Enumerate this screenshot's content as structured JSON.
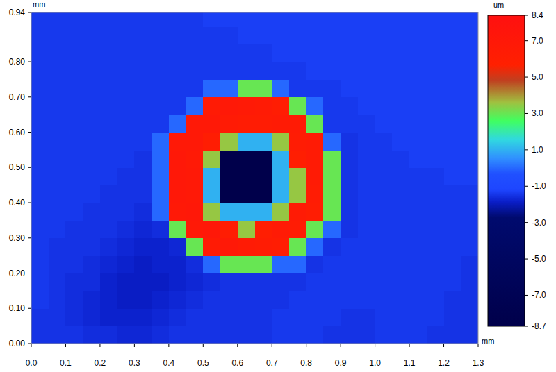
{
  "chart_data": {
    "type": "heatmap",
    "x_label": "mm",
    "y_label": "mm",
    "x": [
      0.025,
      0.075,
      0.125,
      0.175,
      0.225,
      0.275,
      0.325,
      0.375,
      0.425,
      0.475,
      0.525,
      0.575,
      0.625,
      0.675,
      0.725,
      0.775,
      0.825,
      0.875,
      0.925,
      0.975,
      1.025,
      1.075,
      1.125,
      1.175,
      1.225,
      1.275
    ],
    "y": [
      0.025,
      0.075,
      0.125,
      0.175,
      0.225,
      0.275,
      0.325,
      0.375,
      0.425,
      0.475,
      0.525,
      0.575,
      0.625,
      0.675,
      0.725,
      0.775,
      0.825,
      0.875,
      0.925
    ],
    "values": [
      [
        -1.5,
        -1.5,
        -1.5,
        -1.6,
        -1.6,
        -1.7,
        -1.7,
        -1.6,
        -1.5,
        -1.5,
        -1.5,
        -1.5,
        -1.5,
        -1.5,
        -1.4,
        -1.4,
        -1.4,
        -1.5,
        -1.5,
        -1.5,
        -1.4,
        -1.4,
        -1.4,
        -1.5,
        -1.5,
        -1.5
      ],
      [
        -1.5,
        -1.5,
        -1.6,
        -1.7,
        -1.8,
        -1.8,
        -1.8,
        -1.7,
        -1.6,
        -1.5,
        -1.5,
        -1.5,
        -1.5,
        -1.5,
        -1.4,
        -1.4,
        -1.4,
        -1.4,
        -1.5,
        -1.5,
        -1.4,
        -1.4,
        -1.4,
        -1.4,
        -1.5,
        -1.5
      ],
      [
        -1.4,
        -1.5,
        -1.6,
        -1.7,
        -1.8,
        -1.9,
        -1.9,
        -1.8,
        -1.7,
        -1.6,
        -1.5,
        -1.5,
        -1.5,
        -1.5,
        -1.5,
        -1.4,
        -1.4,
        -1.4,
        -1.4,
        -1.4,
        -1.4,
        -1.4,
        -1.4,
        -1.4,
        -1.5,
        -1.5
      ],
      [
        -1.4,
        -1.5,
        -1.6,
        -1.6,
        -1.8,
        -1.9,
        -1.9,
        -1.9,
        -1.8,
        -1.7,
        -1.6,
        -1.5,
        -1.5,
        -1.5,
        -1.5,
        -1.5,
        -1.4,
        -1.4,
        -1.4,
        -1.4,
        -1.4,
        -1.4,
        -1.4,
        -1.4,
        -1.4,
        -1.5
      ],
      [
        -1.4,
        -1.5,
        -1.5,
        -1.6,
        -1.7,
        -1.8,
        -1.9,
        -1.8,
        -1.8,
        -1.6,
        0.0,
        3.0,
        3.0,
        3.0,
        0.0,
        0.0,
        -1.5,
        -1.4,
        -1.4,
        -1.4,
        -1.4,
        -1.4,
        -1.4,
        -1.4,
        -1.4,
        -1.5
      ],
      [
        -1.4,
        -1.5,
        -1.5,
        -1.5,
        -1.6,
        -1.7,
        -1.8,
        -1.8,
        -1.7,
        3.0,
        6.5,
        6.8,
        6.6,
        6.4,
        6.2,
        3.0,
        0.0,
        -1.5,
        -1.4,
        -1.4,
        -1.4,
        -1.4,
        -1.4,
        -1.4,
        -1.4,
        -1.4
      ],
      [
        -1.4,
        -1.4,
        -1.5,
        -1.5,
        -1.5,
        -1.6,
        -1.7,
        -1.6,
        3.0,
        6.8,
        7.0,
        6.2,
        3.5,
        6.0,
        6.5,
        6.4,
        3.0,
        0.0,
        -1.5,
        -1.4,
        -1.4,
        -1.4,
        -1.4,
        -1.4,
        -1.4,
        -1.4
      ],
      [
        -1.4,
        -1.4,
        -1.4,
        -1.5,
        -1.5,
        -1.5,
        -1.6,
        0.0,
        6.8,
        7.0,
        3.5,
        1.0,
        1.0,
        1.0,
        3.5,
        6.6,
        6.2,
        3.0,
        -1.5,
        -1.4,
        -1.4,
        -1.4,
        -1.4,
        -1.4,
        -1.4,
        -1.4
      ],
      [
        -1.4,
        -1.4,
        -1.4,
        -1.4,
        -1.5,
        -1.5,
        -1.5,
        0.0,
        7.0,
        6.9,
        1.0,
        -8.5,
        -8.6,
        -8.5,
        1.0,
        3.5,
        6.4,
        3.0,
        -1.5,
        -1.4,
        -1.4,
        -1.4,
        -1.4,
        -1.4,
        -1.4,
        -1.4
      ],
      [
        -1.4,
        -1.4,
        -1.4,
        -1.4,
        -1.4,
        -1.5,
        -1.5,
        0.0,
        7.1,
        6.8,
        1.0,
        -8.5,
        -8.6,
        -8.5,
        1.0,
        3.5,
        6.5,
        3.0,
        -1.5,
        -1.4,
        -1.4,
        -1.4,
        -1.4,
        -1.4,
        -1.3,
        -1.3
      ],
      [
        -1.4,
        -1.4,
        -1.4,
        -1.4,
        -1.4,
        -1.4,
        -1.5,
        0.0,
        7.0,
        6.7,
        3.5,
        -8.5,
        -8.6,
        -8.5,
        1.0,
        6.0,
        6.6,
        3.0,
        -1.5,
        -1.4,
        -1.4,
        -1.4,
        -1.3,
        -1.3,
        -1.3,
        -1.3
      ],
      [
        -1.4,
        -1.4,
        -1.4,
        -1.4,
        -1.4,
        -1.4,
        -1.4,
        0.0,
        6.9,
        6.8,
        6.2,
        3.5,
        1.0,
        1.0,
        3.5,
        6.4,
        6.6,
        0.0,
        -1.5,
        -1.4,
        -1.4,
        -1.3,
        -1.3,
        -1.3,
        -1.3,
        -1.3
      ],
      [
        -1.4,
        -1.4,
        -1.4,
        -1.4,
        -1.4,
        -1.4,
        -1.4,
        -1.4,
        0.0,
        6.8,
        6.9,
        6.5,
        6.3,
        6.4,
        6.6,
        6.5,
        3.0,
        -1.4,
        -1.4,
        -1.4,
        -1.3,
        -1.3,
        -1.3,
        -1.3,
        -1.3,
        -1.3
      ],
      [
        -1.4,
        -1.4,
        -1.4,
        -1.4,
        -1.4,
        -1.4,
        -1.4,
        -1.4,
        -1.4,
        0.0,
        6.5,
        6.8,
        6.7,
        6.6,
        6.2,
        3.0,
        0.0,
        -1.4,
        -1.4,
        -1.3,
        -1.3,
        -1.3,
        -1.3,
        -1.3,
        -1.3,
        -1.3
      ],
      [
        -1.4,
        -1.4,
        -1.4,
        -1.4,
        -1.4,
        -1.4,
        -1.4,
        -1.4,
        -1.4,
        -1.4,
        0.0,
        0.0,
        3.0,
        3.0,
        0.0,
        -1.4,
        -1.4,
        -1.4,
        -1.3,
        -1.3,
        -1.3,
        -1.3,
        -1.3,
        -1.3,
        -1.3,
        -1.3
      ],
      [
        -1.4,
        -1.4,
        -1.4,
        -1.4,
        -1.4,
        -1.4,
        -1.4,
        -1.4,
        -1.4,
        -1.4,
        -1.4,
        -1.4,
        -1.4,
        -1.4,
        -1.4,
        -1.4,
        -1.3,
        -1.3,
        -1.3,
        -1.3,
        -1.3,
        -1.3,
        -1.3,
        -1.3,
        -1.3,
        -1.3
      ],
      [
        -1.4,
        -1.4,
        -1.4,
        -1.4,
        -1.4,
        -1.4,
        -1.4,
        -1.4,
        -1.4,
        -1.4,
        -1.4,
        -1.4,
        -1.4,
        -1.4,
        -1.3,
        -1.3,
        -1.3,
        -1.3,
        -1.3,
        -1.3,
        -1.3,
        -1.3,
        -1.3,
        -1.3,
        -1.3,
        -1.3
      ],
      [
        -1.4,
        -1.4,
        -1.4,
        -1.4,
        -1.4,
        -1.4,
        -1.4,
        -1.4,
        -1.4,
        -1.4,
        -1.4,
        -1.4,
        -1.3,
        -1.3,
        -1.3,
        -1.3,
        -1.3,
        -1.3,
        -1.3,
        -1.3,
        -1.3,
        -1.3,
        -1.3,
        -1.3,
        -1.3,
        -1.3
      ],
      [
        -1.4,
        -1.4,
        -1.4,
        -1.4,
        -1.4,
        -1.4,
        -1.4,
        -1.4,
        -1.4,
        -1.4,
        -1.3,
        -1.3,
        -1.3,
        -1.3,
        -1.3,
        -1.3,
        -1.3,
        -1.3,
        -1.3,
        -1.3,
        -1.3,
        -1.3,
        -1.3,
        -1.3,
        -1.3,
        -1.3
      ]
    ],
    "xlim": [
      0,
      1.3
    ],
    "ylim": [
      0,
      0.94
    ],
    "xticks": [
      {
        "value": 0,
        "label": "0.0"
      },
      0.1,
      0.2,
      0.3,
      0.4,
      0.5,
      0.6,
      0.7,
      0.8,
      0.9,
      {
        "value": 1,
        "label": "1.0"
      },
      1.1,
      1.2,
      1.3
    ],
    "yticks": [
      {
        "value": 0,
        "label": "0.00"
      },
      {
        "value": 0.1,
        "label": "0.10"
      },
      {
        "value": 0.2,
        "label": "0.20"
      },
      {
        "value": 0.3,
        "label": "0.30"
      },
      {
        "value": 0.4,
        "label": "0.40"
      },
      {
        "value": 0.5,
        "label": "0.50"
      },
      {
        "value": 0.6,
        "label": "0.60"
      },
      {
        "value": 0.7,
        "label": "0.70"
      },
      {
        "value": 0.8,
        "label": "0.80"
      },
      0.94
    ],
    "colorbar": {
      "label": "um",
      "range": [
        -8.7,
        8.4
      ],
      "ticks": [
        8.4,
        {
          "value": 7,
          "label": "7.0"
        },
        {
          "value": 5,
          "label": "5.0"
        },
        {
          "value": 3,
          "label": "3.0"
        },
        {
          "value": 1,
          "label": "1.0"
        },
        {
          "value": -1,
          "label": "-1.0"
        },
        {
          "value": -3,
          "label": "-3.0"
        },
        {
          "value": -5,
          "label": "-5.0"
        },
        {
          "value": -7,
          "label": "-7.0"
        },
        -8.7
      ]
    }
  }
}
